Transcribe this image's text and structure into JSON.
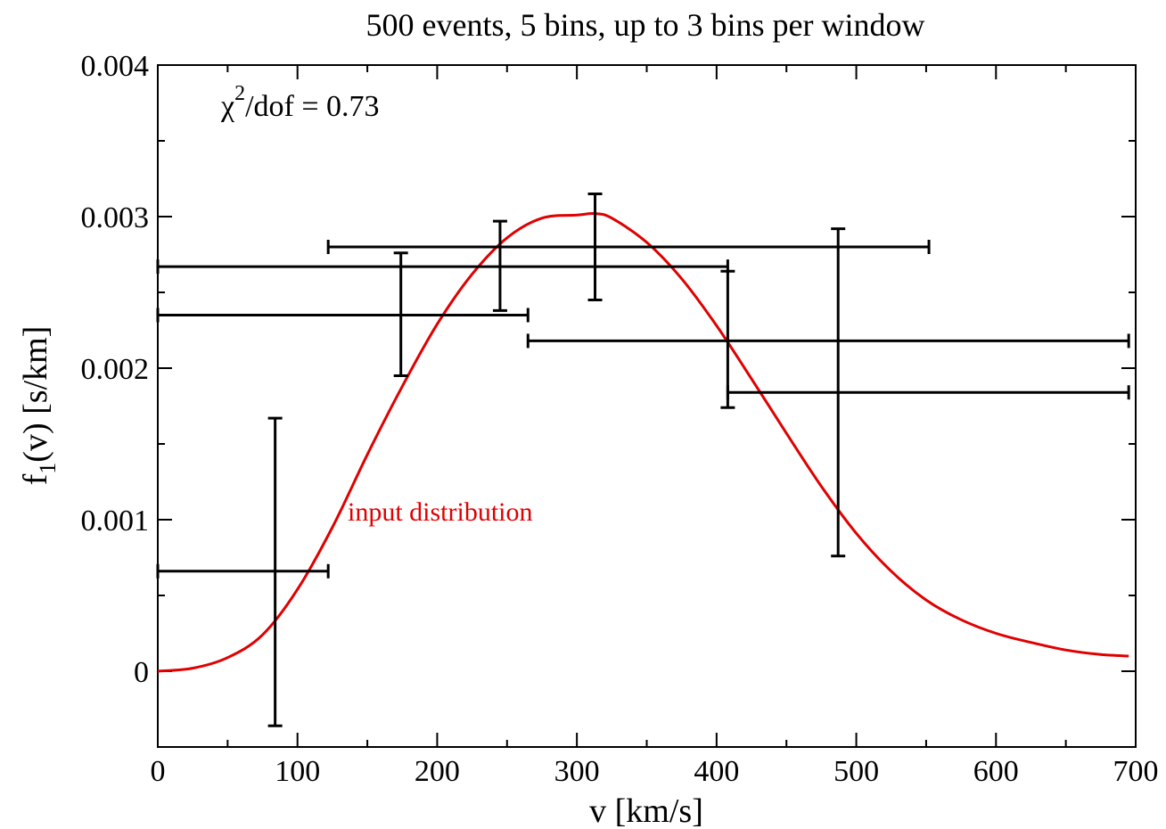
{
  "chart_data": {
    "type": "scatter",
    "title": "500 events, 5 bins, up to 3 bins per window",
    "xlabel": "v [km/s]",
    "ylabel_main": "f",
    "ylabel_sub": "1",
    "ylabel_rest": "(v) [s/km]",
    "annotation": {
      "symbol": "χ",
      "sup": "2",
      "rest": "/dof = 0.73"
    },
    "xlim": [
      0,
      700
    ],
    "ylim": [
      -0.0005,
      0.004
    ],
    "xticks": [
      0,
      100,
      200,
      300,
      400,
      500,
      600,
      700
    ],
    "xtick_labels": [
      "0",
      "100",
      "200",
      "300",
      "400",
      "500",
      "600",
      "700"
    ],
    "yticks": [
      0,
      0.001,
      0.002,
      0.003,
      0.004
    ],
    "ytick_labels": [
      "0",
      "0.001",
      "0.002",
      "0.003",
      "0.004"
    ],
    "points": [
      {
        "x": 84,
        "y": 0.00066,
        "xmin": 0,
        "xmax": 122,
        "ymin": -0.00036,
        "ymax": 0.00167
      },
      {
        "x": 174,
        "y": 0.00235,
        "xmin": 0,
        "xmax": 265,
        "ymin": 0.00195,
        "ymax": 0.00276
      },
      {
        "x": 245,
        "y": 0.00267,
        "xmin": 0,
        "xmax": 408,
        "ymin": 0.00238,
        "ymax": 0.00297
      },
      {
        "x": 313,
        "y": 0.0028,
        "xmin": 122,
        "xmax": 552,
        "ymin": 0.00245,
        "ymax": 0.00315
      },
      {
        "x": 408,
        "y": 0.00218,
        "xmin": 265,
        "xmax": 695,
        "ymin": 0.00174,
        "ymax": 0.00264
      },
      {
        "x": 487,
        "y": 0.00184,
        "xmin": 408,
        "xmax": 695,
        "ymin": 0.00076,
        "ymax": 0.00292
      }
    ],
    "curve": {
      "name": "input distribution",
      "color": "#e00000",
      "x": [
        0,
        25,
        50,
        75,
        100,
        125,
        150,
        175,
        200,
        225,
        250,
        275,
        300,
        313,
        325,
        350,
        375,
        400,
        425,
        450,
        475,
        500,
        525,
        550,
        575,
        600,
        625,
        650,
        675,
        695
      ],
      "y": [
        0,
        2e-05,
        9e-05,
        0.00024,
        0.00054,
        0.00095,
        0.00143,
        0.00188,
        0.00229,
        0.00262,
        0.00286,
        0.00299,
        0.00301,
        0.00302,
        0.00299,
        0.00283,
        0.00259,
        0.00228,
        0.00193,
        0.00157,
        0.00122,
        0.00091,
        0.00066,
        0.00047,
        0.00034,
        0.00025,
        0.00019,
        0.00014,
        0.00011,
        0.0001
      ]
    },
    "grid": false,
    "legend": "none"
  }
}
